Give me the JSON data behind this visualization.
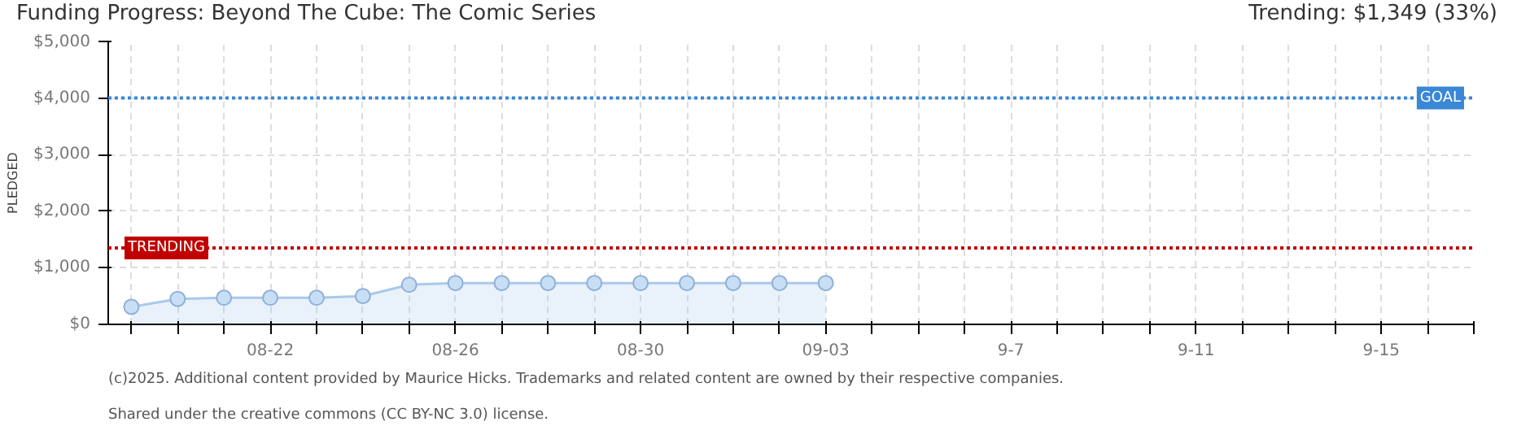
{
  "chart_data": {
    "type": "area",
    "title": "Funding Progress: Beyond The Cube: The Comic Series",
    "subtitle": "Trending:  $1,349 (33%)",
    "ylabel": "PLEDGED",
    "x": [
      "2025-08-19",
      "2025-08-20",
      "2025-08-21",
      "2025-08-22",
      "2025-08-23",
      "2025-08-24",
      "2025-08-25",
      "2025-08-26",
      "2025-08-27",
      "2025-08-28",
      "2025-08-29",
      "2025-08-30",
      "2025-08-31",
      "2025-09-01",
      "2025-09-02",
      "2025-09-03"
    ],
    "series": [
      {
        "color": "#a9c9ec",
        "values": [
          310,
          450,
          470,
          470,
          470,
          500,
          700,
          730,
          730,
          730,
          730,
          730,
          730,
          730,
          730,
          730
        ]
      }
    ],
    "marker": "circle",
    "line_style": "solid",
    "xlim": [
      "2025-08-18T12:00",
      "2025-09-17"
    ],
    "xticks": [
      {
        "value": "2025-08-19",
        "label": null
      },
      {
        "value": "2025-08-20",
        "label": null
      },
      {
        "value": "2025-08-21",
        "label": null
      },
      {
        "value": "2025-08-22",
        "label": "08-22"
      },
      {
        "value": "2025-08-23",
        "label": null
      },
      {
        "value": "2025-08-24",
        "label": null
      },
      {
        "value": "2025-08-25",
        "label": null
      },
      {
        "value": "2025-08-26",
        "label": "08-26"
      },
      {
        "value": "2025-08-27",
        "label": null
      },
      {
        "value": "2025-08-28",
        "label": null
      },
      {
        "value": "2025-08-29",
        "label": null
      },
      {
        "value": "2025-08-30",
        "label": "08-30"
      },
      {
        "value": "2025-08-31",
        "label": null
      },
      {
        "value": "2025-09-01",
        "label": null
      },
      {
        "value": "2025-09-02",
        "label": null
      },
      {
        "value": "2025-09-03",
        "label": "09-03"
      },
      {
        "value": "2025-09-04",
        "label": null
      },
      {
        "value": "2025-09-05",
        "label": null
      },
      {
        "value": "2025-09-06",
        "label": null
      },
      {
        "value": "2025-09-07",
        "label": "9-7"
      },
      {
        "value": "2025-09-08",
        "label": null
      },
      {
        "value": "2025-09-09",
        "label": null
      },
      {
        "value": "2025-09-10",
        "label": null
      },
      {
        "value": "2025-09-11",
        "label": "9-11"
      },
      {
        "value": "2025-09-12",
        "label": null
      },
      {
        "value": "2025-09-13",
        "label": null
      },
      {
        "value": "2025-09-14",
        "label": null
      },
      {
        "value": "2025-09-15",
        "label": "9-15"
      },
      {
        "value": "2025-09-16",
        "label": null
      },
      {
        "value": "2025-09-17",
        "label": null
      }
    ],
    "ylim": [
      0,
      5000
    ],
    "yticks": [
      {
        "value": 0,
        "label": "$0"
      },
      {
        "value": 1000,
        "label": "$1,000"
      },
      {
        "value": 2000,
        "label": "$2,000"
      },
      {
        "value": 3000,
        "label": "$3,000"
      },
      {
        "value": 4000,
        "label": "$4,000"
      },
      {
        "value": 5000,
        "label": "$5,000"
      }
    ],
    "grid": true,
    "ref_lines": [
      {
        "axis": "y",
        "value": 4000,
        "label": "GOAL",
        "color": "#3a87d6",
        "line_style": "dotted"
      },
      {
        "axis": "y",
        "value": 1349,
        "label": "TRENDING",
        "color": "#c00000",
        "line_style": "dotted"
      }
    ],
    "annotations": [
      "(c)2025. Additional content provided by Maurice Hicks. Trademarks and related content are owned by their respective companies.",
      "Shared under the creative commons (CC BY-NC 3.0) license."
    ]
  }
}
